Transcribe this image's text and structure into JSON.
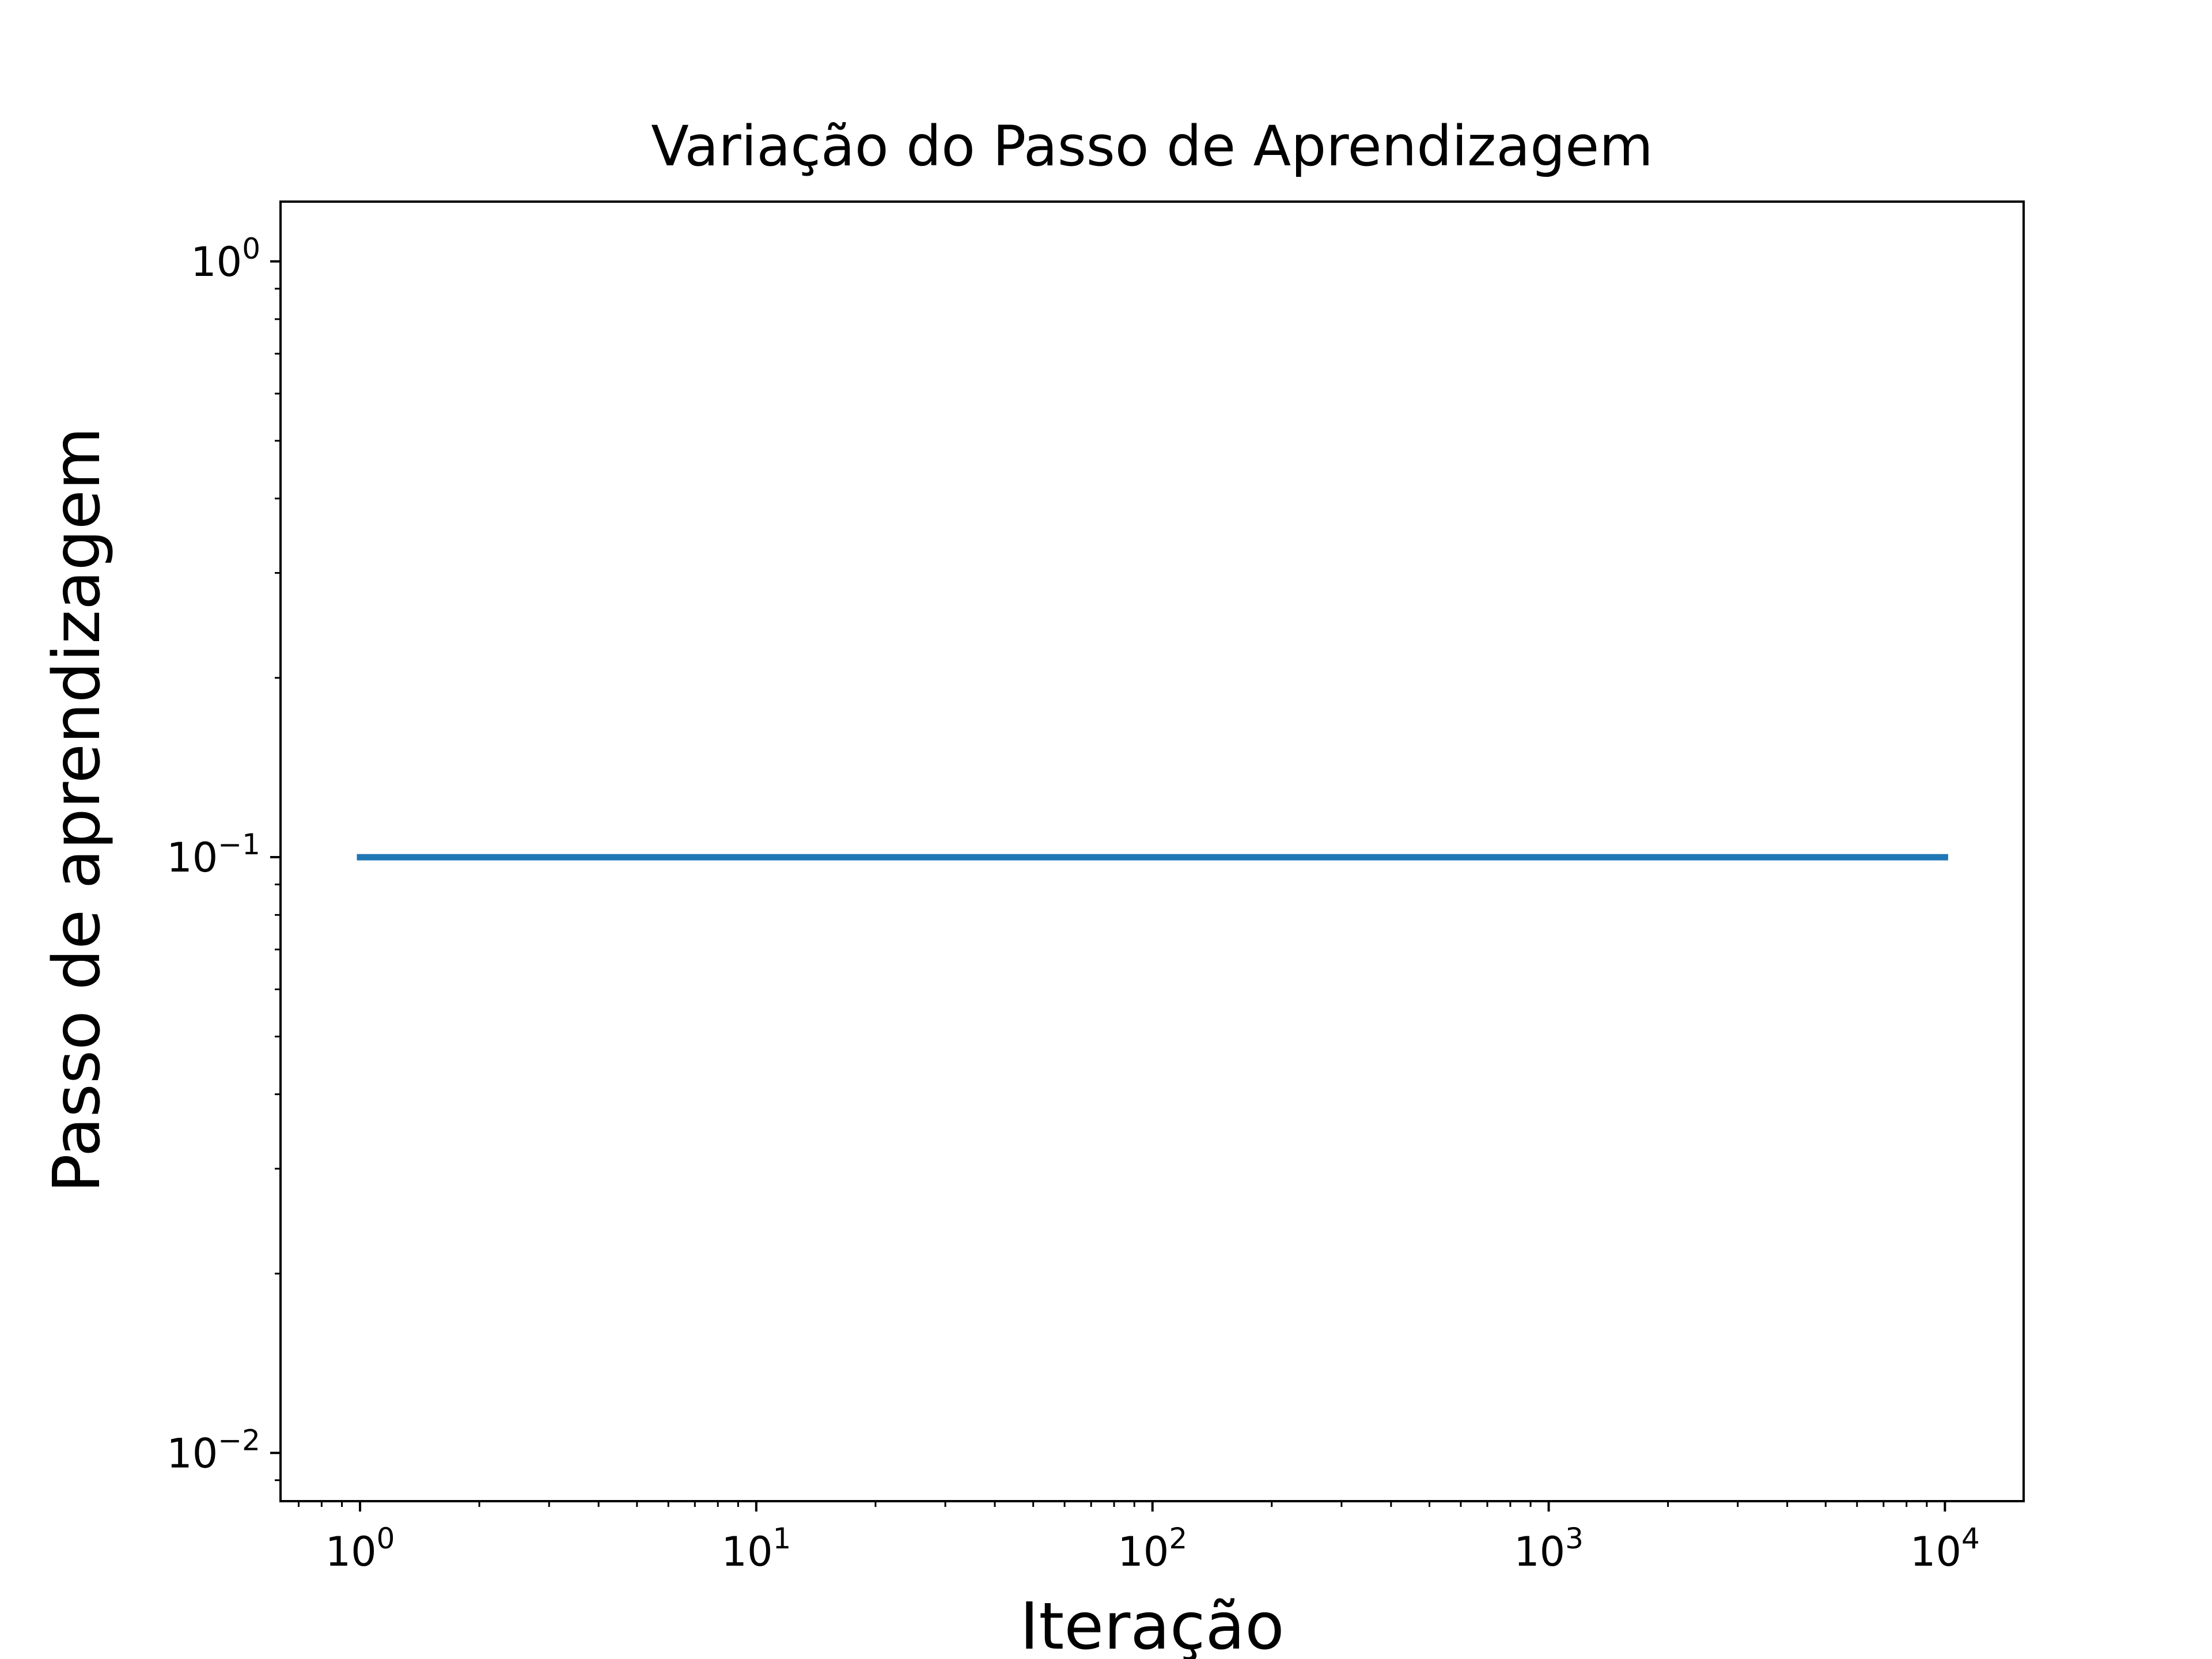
{
  "chart_data": {
    "type": "line",
    "title": "Variação do Passo de Aprendizagem",
    "xlabel": "Iteração",
    "ylabel": "Passo de aprendizagem",
    "xscale": "log",
    "yscale": "log",
    "xlim": [
      0.63,
      15800
    ],
    "ylim": [
      0.0083,
      1.26
    ],
    "grid": false,
    "legend": "none",
    "x_ticks": [
      {
        "base": "10",
        "exp": "0",
        "value": 1
      },
      {
        "base": "10",
        "exp": "1",
        "value": 10
      },
      {
        "base": "10",
        "exp": "2",
        "value": 100
      },
      {
        "base": "10",
        "exp": "3",
        "value": 1000
      },
      {
        "base": "10",
        "exp": "4",
        "value": 10000
      }
    ],
    "y_ticks": [
      {
        "base": "10",
        "exp": "0",
        "value": 1
      },
      {
        "base": "10",
        "exp": "−1",
        "value": 0.1
      },
      {
        "base": "10",
        "exp": "−2",
        "value": 0.01
      }
    ],
    "series": [
      {
        "color": "#1f77b4",
        "x": [
          1,
          10000
        ],
        "y": [
          0.1,
          0.1
        ]
      }
    ]
  }
}
